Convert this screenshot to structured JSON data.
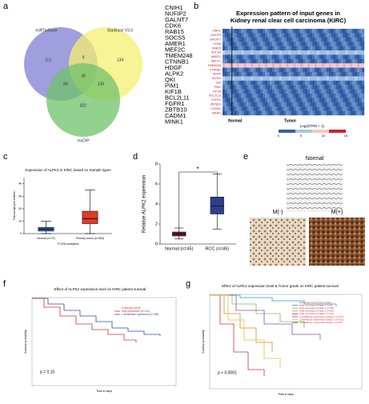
{
  "panels": {
    "a": {
      "label": "a",
      "sets": [
        "miRTarBase",
        "StarBase V3.0",
        "mirDIP"
      ],
      "regions": [
        "113",
        "134",
        "9",
        "66",
        "38",
        "135",
        "822"
      ],
      "genes": [
        "CNIH1",
        "NUFIP2",
        "GALNT7",
        "CDK6",
        "RAB15",
        "SOCS5",
        "AMER1",
        "MEF2C",
        "TMEM248",
        "CTNNB1",
        "HDGF",
        "ALPK2",
        "QKI",
        "PIM1",
        "KIF1B",
        "BCL2L11",
        "FGFR1",
        "ZBTB10",
        "CADM1",
        "MINK1"
      ]
    },
    "b": {
      "label": "b",
      "title": "Expression pattern of input genes in Kidney renal clear cell carcinoma (KIRC)",
      "groups": [
        "Normal",
        "Tumor"
      ],
      "legend_title": "Log2(TPM + 1)",
      "legend_ticks": [
        "0",
        "5",
        "10",
        "15"
      ]
    },
    "c": {
      "label": "c",
      "title": "Expression of ALPK2 in KIRC based on Sample types",
      "y_label": "Transcript per million",
      "x_label": "TCGA samples",
      "ylim": [
        0,
        45
      ],
      "yticks": [
        0,
        10,
        20,
        30,
        40
      ],
      "boxes": [
        {
          "name": "Normal (n=72)",
          "color": "#3a5fa8",
          "min": 0,
          "q1": 2,
          "median": 3.5,
          "q3": 5,
          "max": 10
        },
        {
          "name": "Primary tumor (n=533)",
          "color": "#e0392b",
          "min": 0,
          "q1": 8,
          "median": 12,
          "q3": 18,
          "max": 35
        }
      ]
    },
    "d": {
      "label": "d",
      "y_label": "Relative ALPK2 expression",
      "significance": "*",
      "ylim": [
        0,
        8
      ],
      "yticks": [
        0,
        2,
        4,
        6,
        8
      ],
      "boxes": [
        {
          "name": "Normal (n=45)",
          "color": "#6b1f2a",
          "min": 0.5,
          "q1": 0.8,
          "median": 1,
          "q3": 1.2,
          "max": 1.6
        },
        {
          "name": "RCC (n=45)",
          "color": "#2f3f8f",
          "min": 1.5,
          "q1": 3,
          "median": 3.8,
          "q3": 4.7,
          "max": 7
        }
      ]
    },
    "e": {
      "label": "e",
      "images": [
        "Normal",
        "M(-)",
        "M(+)"
      ]
    },
    "f": {
      "label": "f",
      "title": "Effect of ALPK2 expression level on KIRC patient survival",
      "y_label": "Survival probability",
      "x_label": "Time in days",
      "p": "p = 0.15",
      "legend": [
        "Expression level",
        "High expression (n=134)",
        "Low/Medium expression (n=396)"
      ]
    },
    "g": {
      "label": "g",
      "title": "Effect of ALPK2 expression level & Tumor grade on KIRC patient survival",
      "y_label": "Survival probability",
      "x_label": "Time in days",
      "p": "p < 0.0001",
      "legend": [
        "Expression level-Tumor grade",
        "High expression-Grade 1 (n=3)",
        "High expression-Grade 2 (n=56)",
        "High expression-Grade 3 (n=54)",
        "High expression-Grade 4 (n=21)",
        "Low/Medium expression-Grade 2 (n=172)",
        "Low/Medium expression-Grade 3 (n=152)",
        "Low/Medium expression-Grade 4 (n=54)"
      ]
    }
  }
}
